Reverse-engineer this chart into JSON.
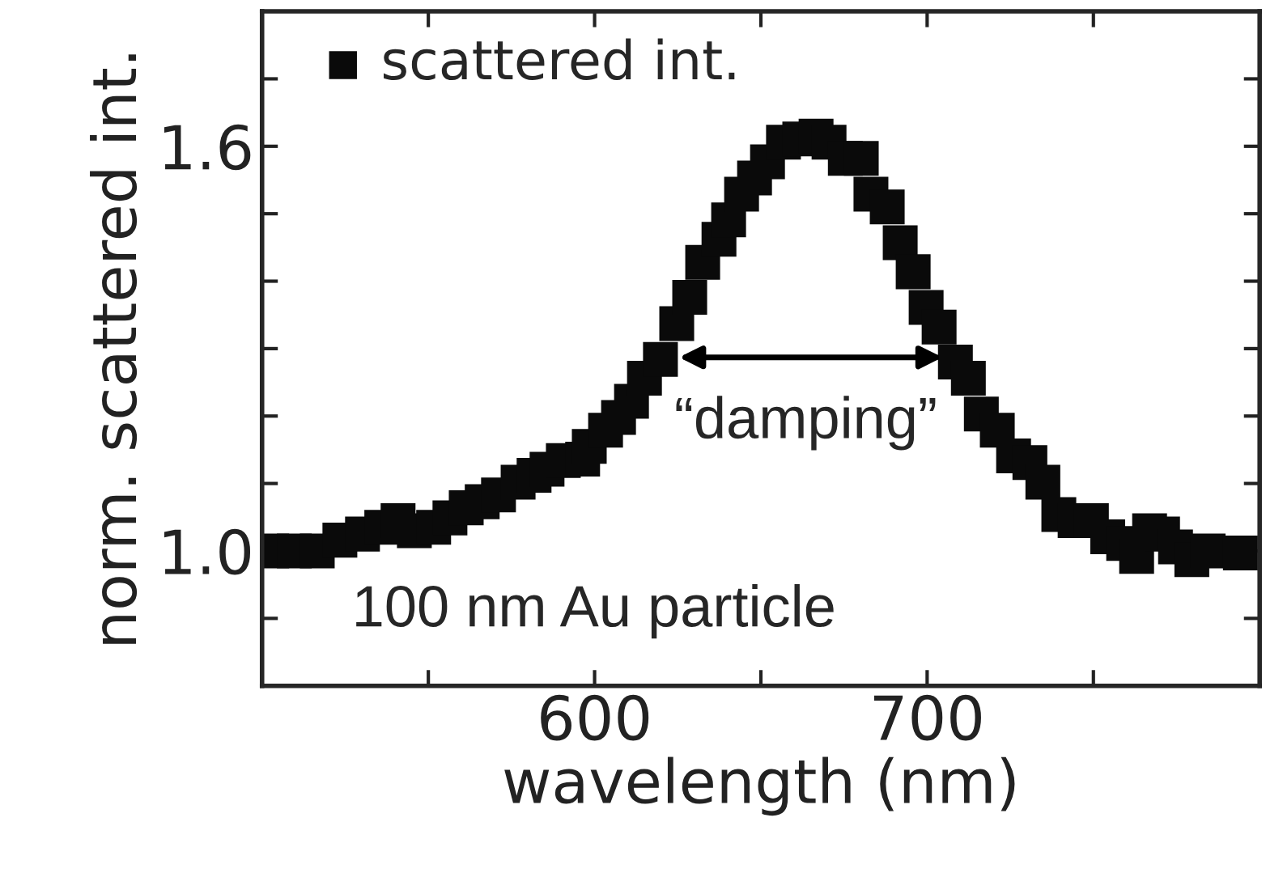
{
  "chart_data": {
    "type": "scatter",
    "xlabel": "wavelength (nm)",
    "ylabel": "norm. scattered int.",
    "xlim": [
      500,
      800
    ],
    "xticks": [
      {
        "value": 550,
        "label": null
      },
      600,
      {
        "value": 650,
        "label": null
      },
      700,
      {
        "value": 750,
        "label": null
      }
    ],
    "ylim": [
      0.8,
      1.8
    ],
    "yticks": [
      {
        "value": 0.9,
        "label": null
      },
      {
        "value": 1.0,
        "label": "1.0"
      },
      {
        "value": 1.1,
        "label": null
      },
      {
        "value": 1.2,
        "label": null
      },
      {
        "value": 1.3,
        "label": null
      },
      {
        "value": 1.4,
        "label": null
      },
      {
        "value": 1.5,
        "label": null
      },
      1.6,
      {
        "value": 1.7,
        "label": null
      }
    ],
    "marker": "square",
    "legend": "top left",
    "grid": false,
    "x": [
      502.9,
      509.7,
      516.6,
      523.4,
      530.2,
      536.0,
      540.9,
      545.8,
      551.6,
      556.5,
      561.4,
      566.2,
      571.1,
      577.0,
      581.8,
      585.7,
      590.6,
      596.4,
      598.4,
      603.3,
      607.2,
      611.1,
      615.0,
      619.8,
      624.7,
      628.6,
      632.5,
      637.4,
      640.3,
      644.2,
      648.1,
      652.0,
      656.8,
      661.7,
      666.6,
      670.5,
      675.4,
      680.2,
      683.1,
      688.0,
      691.9,
      695.8,
      699.7,
      703.6,
      708.5,
      712.4,
      716.3,
      721.1,
      726.0,
      730.9,
      734.8,
      739.6,
      744.5,
      749.4,
      754.3,
      759.1,
      763.0,
      766.9,
      770.8,
      774.7,
      779.6,
      784.5,
      794.2
    ],
    "series": [
      {
        "name": "scattered int.",
        "color": "#0a0a0a",
        "values": [
          1.0,
          1.0,
          1.0,
          1.016,
          1.025,
          1.035,
          1.045,
          1.03,
          1.035,
          1.049,
          1.064,
          1.073,
          1.083,
          1.102,
          1.112,
          1.121,
          1.134,
          1.136,
          1.155,
          1.179,
          1.198,
          1.222,
          1.256,
          1.284,
          1.337,
          1.376,
          1.428,
          1.462,
          1.491,
          1.529,
          1.553,
          1.577,
          1.606,
          1.611,
          1.615,
          1.606,
          1.582,
          1.582,
          1.529,
          1.51,
          1.457,
          1.414,
          1.361,
          1.332,
          1.28,
          1.256,
          1.203,
          1.179,
          1.141,
          1.131,
          1.102,
          1.054,
          1.045,
          1.045,
          1.021,
          1.011,
          0.992,
          1.03,
          1.025,
          1.006,
          0.987,
          1.0,
          0.997
        ]
      }
    ],
    "annotations": [
      "“damping”",
      "100 nm Au particle"
    ]
  }
}
